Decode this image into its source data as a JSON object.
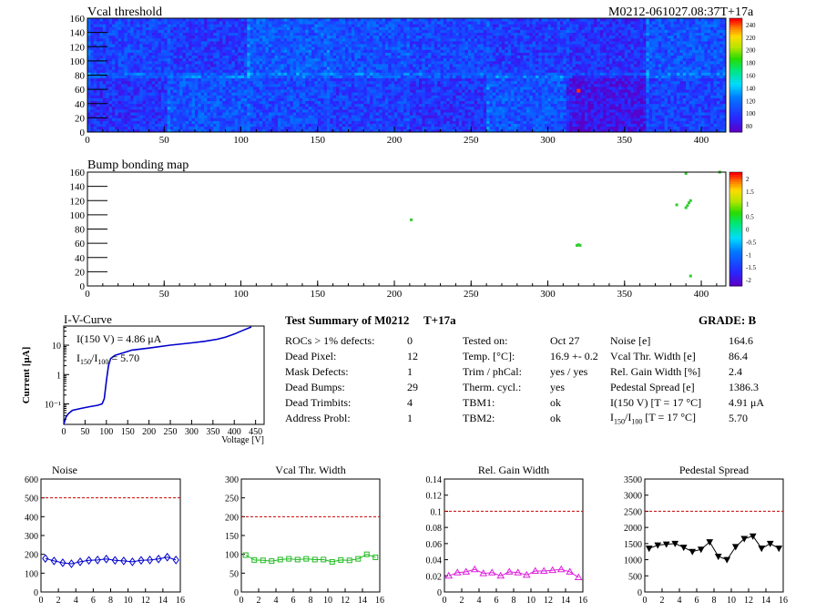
{
  "header": {
    "vcal_title": "Vcal threshold",
    "module_id": "M0212-061027.08:37T+17a",
    "bump_title": "Bump bonding map"
  },
  "vcal_map": {
    "x_ticks": [
      "0",
      "50",
      "100",
      "150",
      "200",
      "250",
      "300",
      "350",
      "400"
    ],
    "y_ticks": [
      "0",
      "20",
      "40",
      "60",
      "80",
      "100",
      "120",
      "140",
      "160"
    ],
    "xlim": [
      0,
      416
    ],
    "ylim": [
      0,
      160
    ],
    "palette_labels": [
      "80",
      "100",
      "120",
      "140",
      "160",
      "180",
      "200",
      "220",
      "240"
    ],
    "zlim": [
      70,
      250
    ],
    "hot_pixel": {
      "x": 320,
      "y": 58,
      "value": 245
    }
  },
  "bump_map": {
    "x_ticks": [
      "0",
      "50",
      "100",
      "150",
      "200",
      "250",
      "300",
      "350",
      "400"
    ],
    "y_ticks": [
      "0",
      "20",
      "40",
      "60",
      "80",
      "100",
      "120",
      "140",
      "160"
    ],
    "xlim": [
      0,
      416
    ],
    "ylim": [
      0,
      160
    ],
    "palette_labels": [
      "-2",
      "-1.5",
      "-1",
      "-0.5",
      "0",
      "0.5",
      "1",
      "1.5",
      "2"
    ],
    "zlim": [
      -2,
      2
    ],
    "points": [
      {
        "x": 211,
        "y": 93
      },
      {
        "x": 319,
        "y": 57
      },
      {
        "x": 320,
        "y": 58
      },
      {
        "x": 321,
        "y": 57
      },
      {
        "x": 384,
        "y": 114
      },
      {
        "x": 390,
        "y": 110
      },
      {
        "x": 391,
        "y": 113
      },
      {
        "x": 392,
        "y": 117
      },
      {
        "x": 393,
        "y": 120
      },
      {
        "x": 390,
        "y": 158
      },
      {
        "x": 412,
        "y": 160
      },
      {
        "x": 393,
        "y": 14
      }
    ]
  },
  "iv_curve": {
    "title": "I-V-Curve",
    "ylabel": "Current [μA]",
    "xlabel": "Voltage [V]",
    "annotation_1": "I(150 V) = 4.86 μA",
    "annotation_2_pre": "I",
    "annotation_2_sub1": "150",
    "annotation_2_mid": "/I",
    "annotation_2_sub2": "100",
    "annotation_2_post": " = 5.70",
    "x_ticks": [
      "0",
      "50",
      "100",
      "150",
      "200",
      "250",
      "300",
      "350",
      "400",
      "450"
    ],
    "y_ticks": [
      "10⁻¹",
      "1",
      "10"
    ],
    "xlim": [
      0,
      470
    ],
    "ylim_log": [
      0.02,
      45
    ],
    "x": [
      0,
      5,
      10,
      20,
      40,
      60,
      80,
      90,
      95,
      100,
      105,
      110,
      120,
      140,
      160,
      200,
      250,
      300,
      330,
      360,
      380,
      400,
      420,
      440
    ],
    "y": [
      0.02,
      0.035,
      0.045,
      0.06,
      0.07,
      0.08,
      0.09,
      0.1,
      0.15,
      0.6,
      2,
      3.5,
      4.5,
      5.5,
      6.8,
      8,
      10,
      12,
      13.5,
      16,
      19,
      24,
      32,
      42
    ]
  },
  "summary": {
    "title": "Test Summary of M0212",
    "temp_tag": "T+17a",
    "grade_label": "GRADE:  B",
    "col1_labels": [
      "ROCs > 1% defects:",
      "Dead Pixel:",
      "Mask Defects:",
      "Dead Bumps:",
      "Dead Trimbits:",
      "Address Probl:"
    ],
    "col1_values": [
      "0",
      "12",
      "1",
      "29",
      "4",
      "1"
    ],
    "col2_labels": [
      "Tested on:",
      "Temp. [°C]:",
      "Trim / phCal:",
      "Therm. cycl.:",
      "TBM1:",
      "TBM2:"
    ],
    "col2_values": [
      "Oct 27",
      "16.9 +- 0.2",
      "yes / yes",
      "yes",
      "ok",
      "ok"
    ],
    "col3_labels": [
      "Noise [e]",
      "Vcal Thr. Width [e]",
      "Rel. Gain Width [%]",
      "Pedestal Spread [e]",
      "I(150 V) [T = 17 °C]"
    ],
    "col3_ratio_label": {
      "pre": "I",
      "sub1": "150",
      "mid": "/I",
      "sub2": "100",
      "post": "   [T = 17 °C]"
    },
    "col3_values": [
      "164.6",
      "86.4",
      "2.4",
      "1386.3",
      "4.91 μA",
      "5.70"
    ]
  },
  "chart_data": [
    {
      "type": "line",
      "title": "Noise",
      "x": [
        0,
        1,
        2,
        3,
        4,
        5,
        6,
        7,
        8,
        9,
        10,
        11,
        12,
        13,
        14,
        15
      ],
      "values": [
        178,
        165,
        155,
        150,
        160,
        168,
        170,
        175,
        168,
        165,
        160,
        168,
        170,
        175,
        185,
        170
      ],
      "xlim": [
        0,
        16
      ],
      "ylim": [
        0,
        600
      ],
      "y_ticks": [
        "0",
        "100",
        "200",
        "300",
        "400",
        "500",
        "600"
      ],
      "x_ticks": [
        "0",
        "2",
        "4",
        "6",
        "8",
        "10",
        "12",
        "14",
        "16"
      ],
      "threshold": 500,
      "color": "#0000cc",
      "marker": "diamond"
    },
    {
      "type": "line",
      "title": "Vcal Thr. Width",
      "x": [
        0,
        1,
        2,
        3,
        4,
        5,
        6,
        7,
        8,
        9,
        10,
        11,
        12,
        13,
        14,
        15
      ],
      "values": [
        98,
        85,
        84,
        82,
        86,
        88,
        86,
        88,
        86,
        86,
        80,
        85,
        84,
        88,
        100,
        92
      ],
      "xlim": [
        0,
        16
      ],
      "ylim": [
        0,
        300
      ],
      "y_ticks": [
        "0",
        "50",
        "100",
        "150",
        "200",
        "250",
        "300"
      ],
      "x_ticks": [
        "0",
        "2",
        "4",
        "6",
        "8",
        "10",
        "12",
        "14",
        "16"
      ],
      "threshold": 200,
      "color": "#22bb22",
      "marker": "square"
    },
    {
      "type": "line",
      "title": "Rel. Gain Width",
      "x": [
        0,
        1,
        2,
        3,
        4,
        5,
        6,
        7,
        8,
        9,
        10,
        11,
        12,
        13,
        14,
        15
      ],
      "values": [
        0.02,
        0.024,
        0.025,
        0.028,
        0.023,
        0.024,
        0.02,
        0.025,
        0.024,
        0.021,
        0.026,
        0.026,
        0.027,
        0.028,
        0.025,
        0.018
      ],
      "xlim": [
        0,
        16
      ],
      "ylim": [
        0,
        0.14
      ],
      "y_ticks": [
        "0",
        "0.02",
        "0.04",
        "0.06",
        "0.08",
        "0.1",
        "0.12",
        "0.14"
      ],
      "x_ticks": [
        "0",
        "2",
        "4",
        "6",
        "8",
        "10",
        "12",
        "14",
        "16"
      ],
      "threshold": 0.1,
      "color": "#dd22dd",
      "marker": "triangle"
    },
    {
      "type": "line",
      "title": "Pedestal Spread",
      "x": [
        0,
        1,
        2,
        3,
        4,
        5,
        6,
        7,
        8,
        9,
        10,
        11,
        12,
        13,
        14,
        15
      ],
      "values": [
        1350,
        1450,
        1480,
        1500,
        1380,
        1250,
        1320,
        1550,
        1100,
        1000,
        1400,
        1650,
        1730,
        1350,
        1500,
        1350
      ],
      "xlim": [
        0,
        16
      ],
      "ylim": [
        0,
        3500
      ],
      "y_ticks": [
        "0",
        "500",
        "1000",
        "1500",
        "2000",
        "2500",
        "3000",
        "3500"
      ],
      "x_ticks": [
        "0",
        "2",
        "4",
        "6",
        "8",
        "10",
        "12",
        "14",
        "16"
      ],
      "threshold": 2500,
      "color": "#000000",
      "marker": "triangle-down"
    }
  ]
}
